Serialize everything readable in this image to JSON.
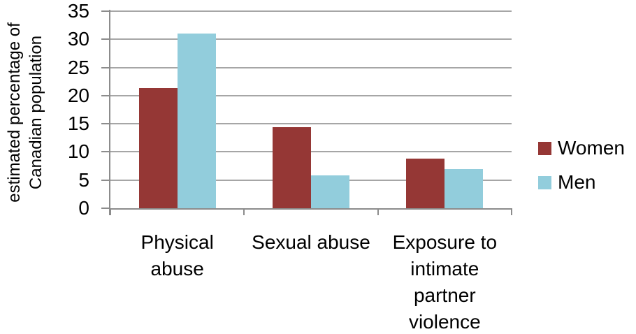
{
  "chart_data": {
    "type": "bar",
    "title": "",
    "xlabel": "",
    "ylabel": "estimated percentage of Canadian population",
    "ylabel_lines": [
      "estimated percentage of",
      "Canadian population"
    ],
    "ylim": [
      0,
      35
    ],
    "yticks": [
      0,
      5,
      10,
      15,
      20,
      25,
      30,
      35
    ],
    "grid": true,
    "legend_position": "right",
    "categories": [
      "Physical abuse",
      "Sexual abuse",
      "Exposure to intimate partner violence"
    ],
    "category_label_lines": [
      [
        "Physical",
        "abuse"
      ],
      [
        "Sexual abuse"
      ],
      [
        "Exposure to",
        "intimate",
        "partner",
        "violence"
      ]
    ],
    "series": [
      {
        "name": "Women",
        "color": "#953735",
        "values": [
          21.3,
          14.4,
          8.8
        ]
      },
      {
        "name": "Men",
        "color": "#92CDDC",
        "values": [
          31.0,
          5.8,
          6.9
        ]
      }
    ],
    "colors": {
      "women": "#953735",
      "men": "#92CDDC",
      "gridline": "#A6A6A6",
      "axis": "#8C8C8C",
      "text": "#000000",
      "background": "#FFFFFF"
    }
  }
}
